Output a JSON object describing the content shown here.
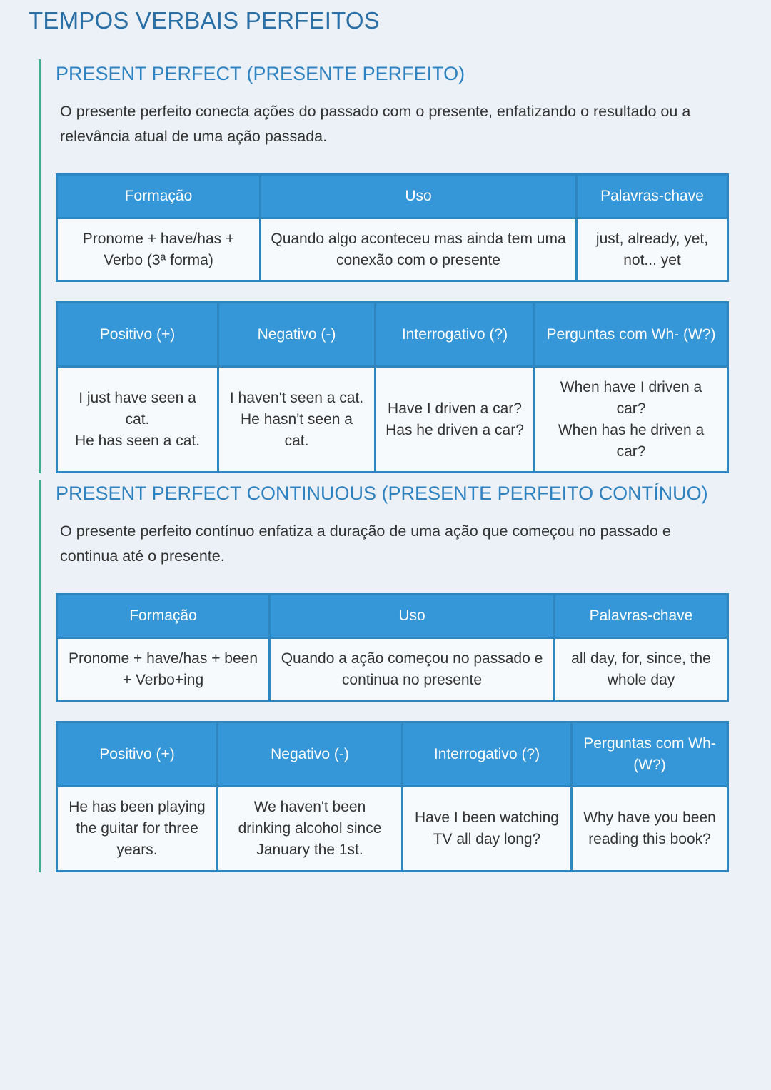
{
  "title": "TEMPOS VERBAIS PERFEITOS",
  "colors": {
    "heading": "#2a70a6",
    "table_header": "#3596d8",
    "table_border": "#2e86c1",
    "section_bar": "#3fae8c"
  },
  "sections": [
    {
      "heading": "PRESENT PERFECT (PRESENTE PERFEITO)",
      "description": "O presente perfeito conecta ações do passado com o presente, enfatizando o resultado ou a relevância atual de uma ação passada.",
      "table1": {
        "headers": [
          "Formação",
          "Uso",
          "Palavras-chave"
        ],
        "row": [
          "Pronome + have/has + Verbo (3ª forma)",
          "Quando algo aconteceu mas ainda tem uma conexão com o presente",
          "just, already, yet, not... yet"
        ]
      },
      "table2": {
        "headers": [
          "Positivo (+)",
          "Negativo (-)",
          "Interrogativo (?)",
          "Perguntas com Wh- (W?)"
        ],
        "row": [
          "I just have seen a cat.\nHe has seen a cat.",
          "I haven't seen a cat.\nHe hasn't seen a cat.",
          "Have I driven a car?\nHas he driven a car?",
          "When have I driven a car?\nWhen has he driven a car?"
        ]
      }
    },
    {
      "heading": "PRESENT PERFECT CONTINUOUS (PRESENTE PERFEITO CONTÍNUO)",
      "description": "O presente perfeito contínuo enfatiza a duração de uma ação que começou no passado e continua até o presente.",
      "table1": {
        "headers": [
          "Formação",
          "Uso",
          "Palavras-chave"
        ],
        "row": [
          "Pronome + have/has + been + Verbo+ing",
          "Quando a ação começou no passado e continua no presente",
          "all day, for, since, the whole day"
        ]
      },
      "table2": {
        "headers": [
          "Positivo (+)",
          "Negativo (-)",
          "Interrogativo (?)",
          "Perguntas com Wh- (W?)"
        ],
        "row": [
          "He has been playing the guitar for three years.",
          "We haven't been drinking alcohol since January the 1st.",
          "Have I been watching TV all day long?",
          "Why have you been reading this book?"
        ]
      }
    }
  ]
}
